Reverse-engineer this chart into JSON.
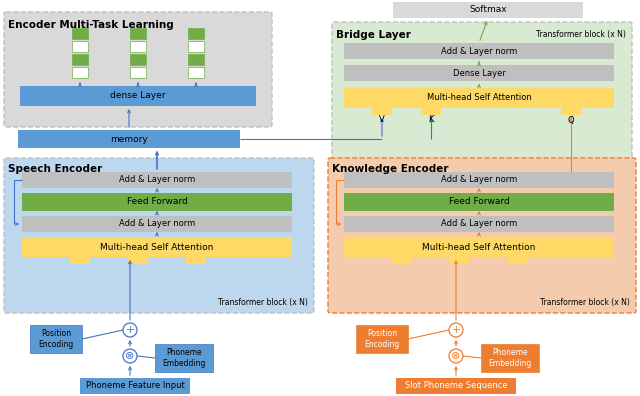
{
  "fig_width": 6.4,
  "fig_height": 3.96,
  "dpi": 100,
  "colors": {
    "blue_box": "#5B9BD5",
    "blue_bg": "#BDD7EE",
    "green_box": "#70AD47",
    "green_bg": "#D9EAD3",
    "yellow_box": "#FFD966",
    "gray_box": "#BFBFBF",
    "gray_bg": "#D9D9D9",
    "orange_bg": "#F4CBAD",
    "orange_box": "#ED7D31",
    "orange_arrow": "#ED7D31",
    "blue_arrow": "#4472C4",
    "green_arrow": "#70AD47",
    "white": "#FFFFFF",
    "black": "#000000"
  },
  "labels": {
    "encoder_mtl": "Encoder Multi-Task Learning",
    "bridge": "Bridge Layer",
    "speech_enc": "Speech Encoder",
    "knowledge_enc": "Knowledge Encoder",
    "dense_layer_mtl": "dense Layer",
    "memory": "memory",
    "softmax": "Softmax",
    "add_layer_norm": "Add & Layer norm",
    "feed_forward": "Feed Forward",
    "mhsa": "Multi-head Self Attention",
    "dense_layer_bridge": "Dense Layer",
    "transformer_block": "Transformer block (x N)",
    "position_encoding": "Position\nEncoding",
    "phoneme_embedding": "Phoneme\nEmbedding",
    "phoneme_feature_input": "Phoneme Feature Input",
    "slot_phoneme_sequence": "Slot Phoneme Sequence",
    "V": "V",
    "K": "K",
    "Q": "Q"
  }
}
